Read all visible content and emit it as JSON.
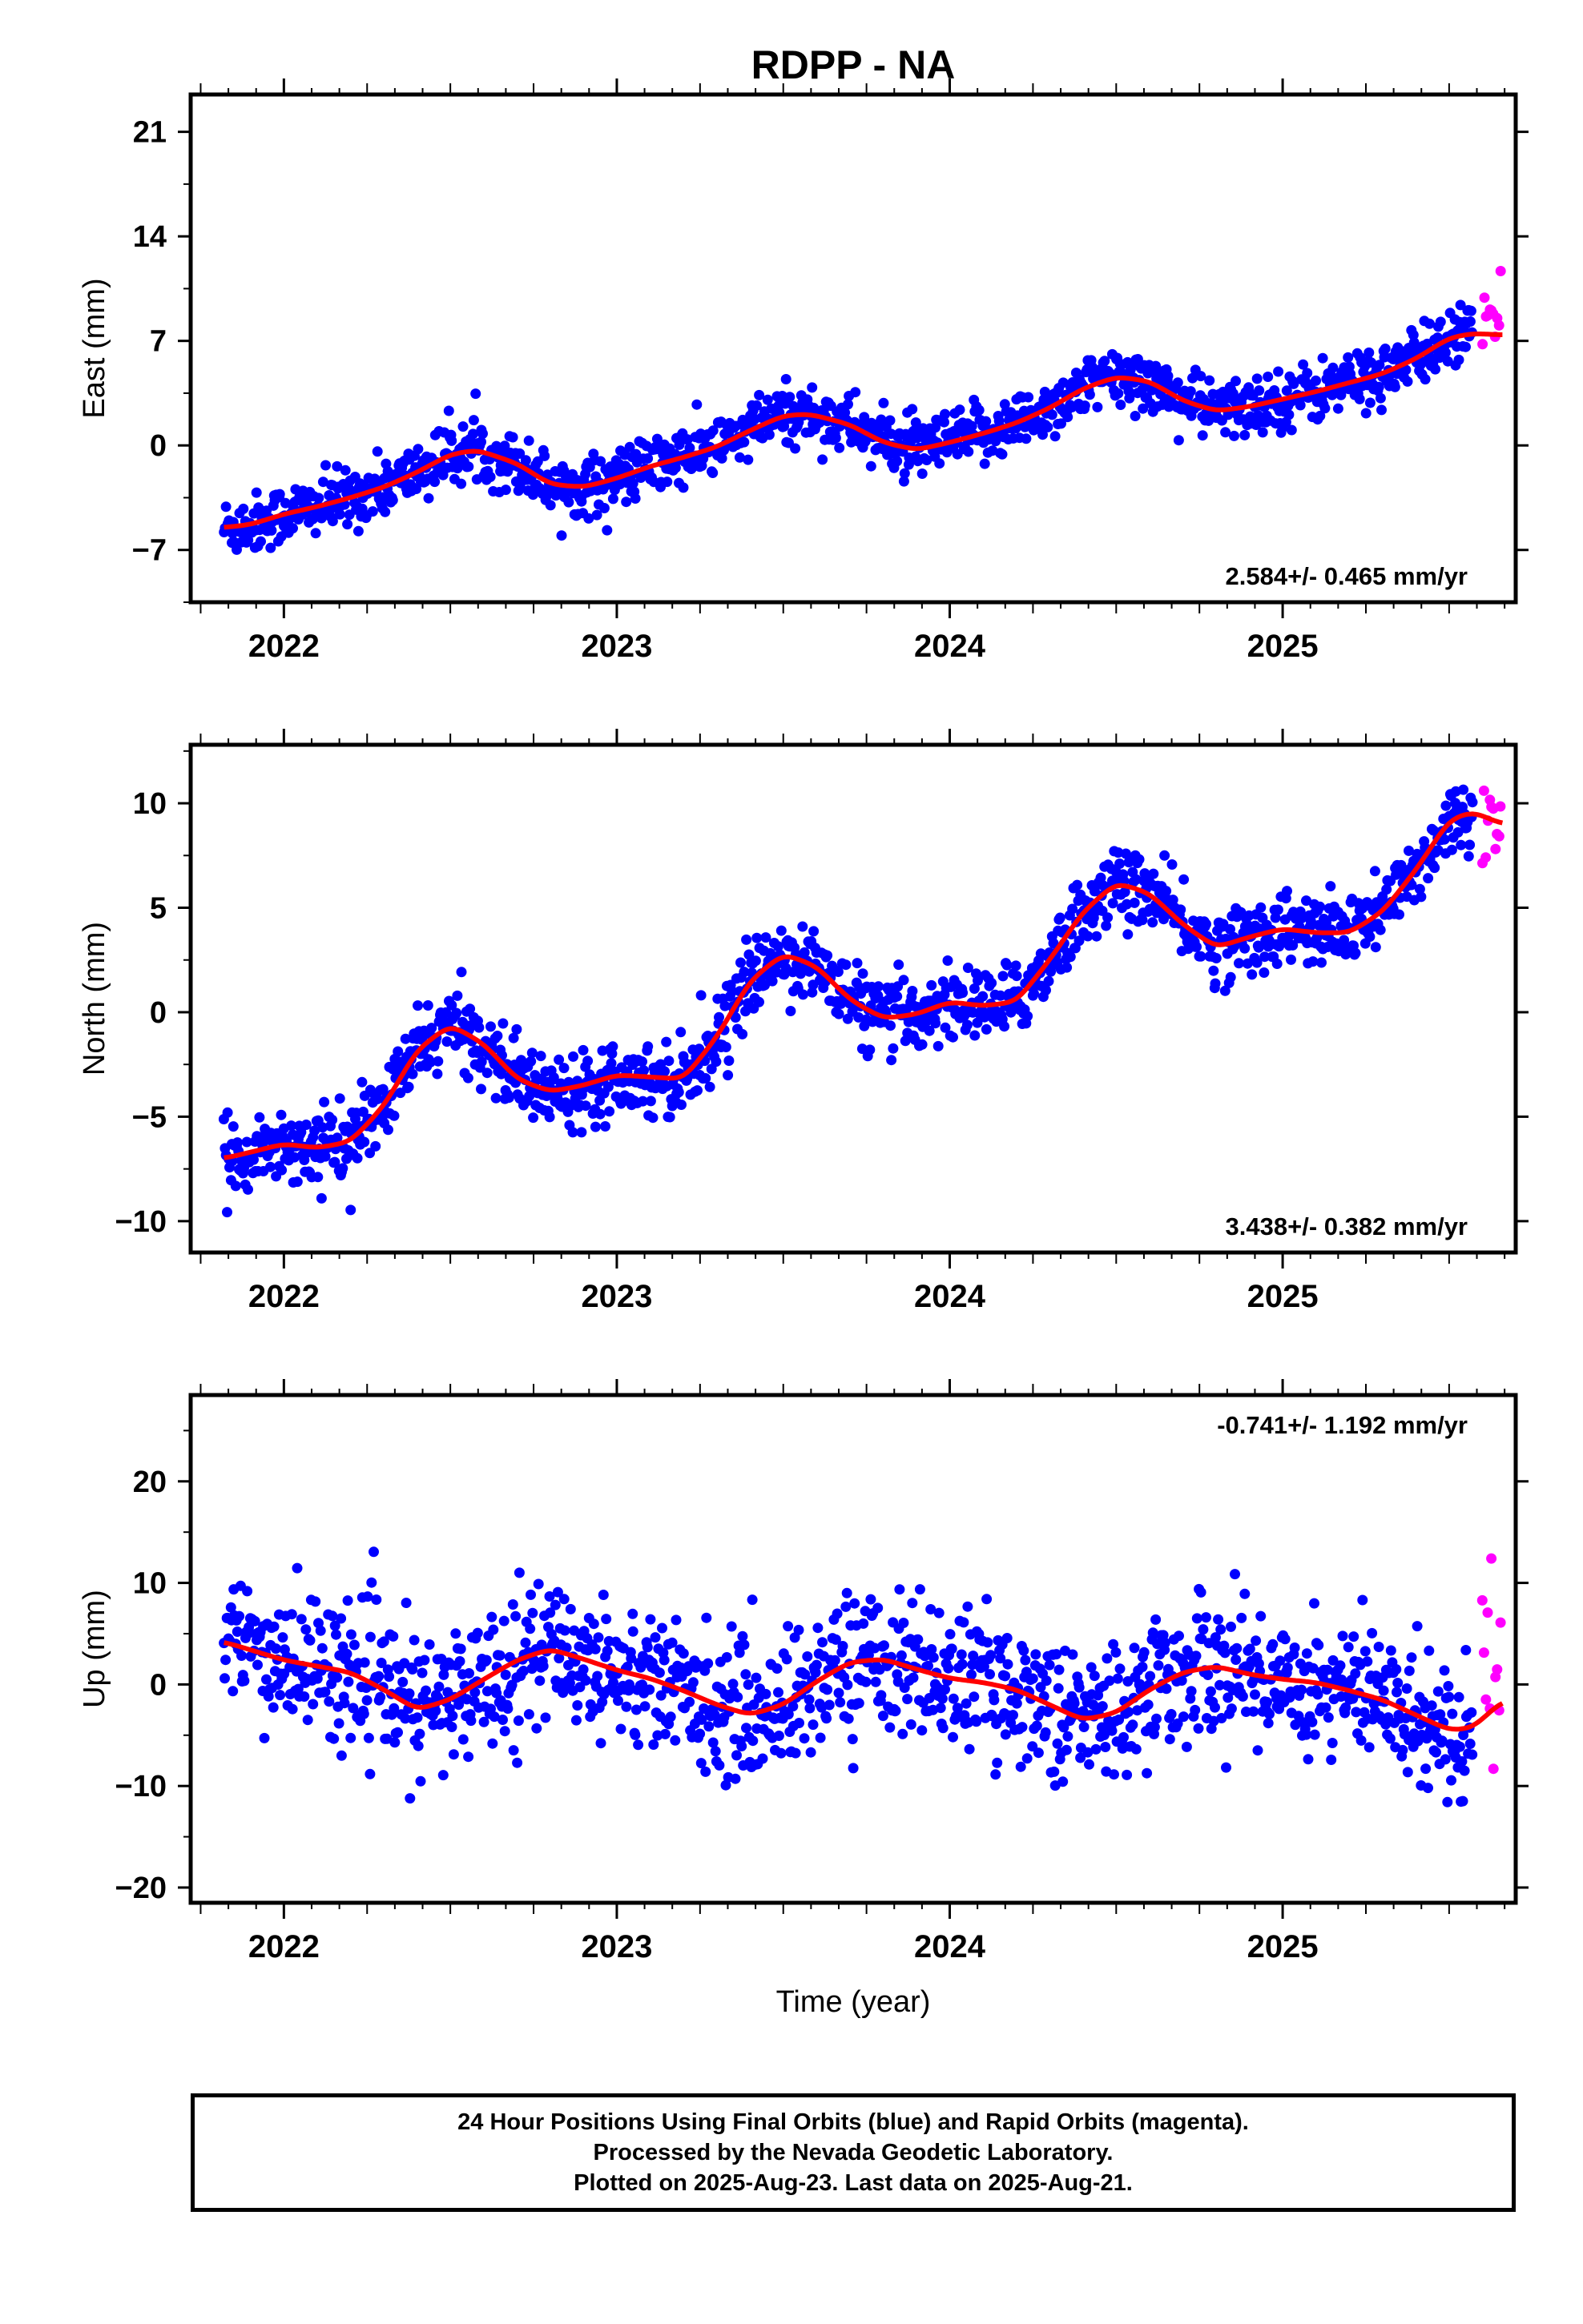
{
  "title": "RDPP - NA",
  "xlabel": "Time (year)",
  "footer": {
    "line1": "24 Hour Positions Using Final Orbits (blue) and Rapid Orbits (magenta).",
    "line2": "Processed by the Nevada Geodetic Laboratory.",
    "line3": "Plotted on 2025-Aug-23. Last data on 2025-Aug-21."
  },
  "colors": {
    "final": "#0000ff",
    "rapid": "#ff00ff",
    "fit": "#ff0000",
    "frame": "#000000"
  },
  "chart_data": [
    {
      "type": "scatter",
      "ylabel": "East (mm)",
      "xlim": [
        2021.72,
        2025.7
      ],
      "ylim": [
        -10.5,
        23.5
      ],
      "xticks": [
        2022,
        2023,
        2024,
        2025
      ],
      "yticks": [
        -7,
        0,
        7,
        14,
        21
      ],
      "rate_label": "2.584+/- 0.465 mm/yr",
      "rate_position": "bottom-right",
      "series": [
        {
          "role": "final",
          "x": [
            2021.82,
            2021.9,
            2022.0,
            2022.1,
            2022.2,
            2022.3,
            2022.4,
            2022.5,
            2022.58,
            2022.7,
            2022.8,
            2022.9,
            2023.0,
            2023.1,
            2023.2,
            2023.3,
            2023.4,
            2023.5,
            2023.58,
            2023.7,
            2023.8,
            2023.9,
            2024.0,
            2024.1,
            2024.2,
            2024.3,
            2024.4,
            2024.5,
            2024.6,
            2024.7,
            2024.8,
            2024.9,
            2025.0,
            2025.1,
            2025.2,
            2025.3,
            2025.4,
            2025.5,
            2025.57
          ],
          "y": [
            -5.5,
            -5.3,
            -4.6,
            -4.1,
            -3.5,
            -2.8,
            -1.8,
            -0.6,
            -0.3,
            -1.2,
            -2.6,
            -2.8,
            -2.2,
            -1.4,
            -0.8,
            -0.1,
            1.0,
            2.0,
            2.1,
            1.4,
            0.2,
            -0.3,
            0.2,
            0.8,
            1.5,
            2.5,
            3.8,
            4.6,
            4.3,
            3.0,
            2.3,
            2.6,
            3.1,
            3.6,
            4.2,
            4.8,
            5.8,
            7.2,
            7.5
          ],
          "sd": 1.6
        },
        {
          "role": "rapid",
          "x": [
            2025.6,
            2025.62,
            2025.64,
            2025.66
          ],
          "y": [
            8.2,
            7.6,
            9.0,
            7.8
          ],
          "sd": 2.2
        }
      ],
      "fit": {
        "x": [
          2021.82,
          2021.9,
          2022.0,
          2022.1,
          2022.2,
          2022.3,
          2022.4,
          2022.5,
          2022.58,
          2022.7,
          2022.8,
          2022.9,
          2023.0,
          2023.1,
          2023.2,
          2023.3,
          2023.4,
          2023.5,
          2023.58,
          2023.7,
          2023.8,
          2023.9,
          2024.0,
          2024.1,
          2024.2,
          2024.3,
          2024.4,
          2024.5,
          2024.6,
          2024.7,
          2024.8,
          2024.9,
          2025.0,
          2025.1,
          2025.2,
          2025.3,
          2025.4,
          2025.5,
          2025.57,
          2025.66
        ],
        "y": [
          -5.5,
          -5.3,
          -4.6,
          -4.1,
          -3.5,
          -2.8,
          -1.8,
          -0.6,
          -0.3,
          -1.2,
          -2.6,
          -2.8,
          -2.2,
          -1.4,
          -0.8,
          -0.1,
          1.0,
          2.0,
          2.1,
          1.4,
          0.2,
          -0.3,
          0.2,
          0.8,
          1.5,
          2.5,
          3.8,
          4.6,
          4.3,
          3.0,
          2.3,
          2.6,
          3.1,
          3.6,
          4.2,
          4.8,
          5.8,
          7.2,
          7.5,
          7.4
        ]
      }
    },
    {
      "type": "scatter",
      "ylabel": "North (mm)",
      "xlim": [
        2021.72,
        2025.7
      ],
      "ylim": [
        -11.5,
        12.8
      ],
      "xticks": [
        2022,
        2023,
        2024,
        2025
      ],
      "yticks": [
        -10,
        -5,
        0,
        5,
        10
      ],
      "rate_label": "3.438+/- 0.382 mm/yr",
      "rate_position": "bottom-right",
      "series": [
        {
          "role": "final",
          "x": [
            2021.82,
            2021.9,
            2022.0,
            2022.1,
            2022.2,
            2022.3,
            2022.4,
            2022.5,
            2022.6,
            2022.7,
            2022.8,
            2022.9,
            2023.0,
            2023.1,
            2023.2,
            2023.3,
            2023.4,
            2023.5,
            2023.6,
            2023.7,
            2023.8,
            2023.9,
            2024.0,
            2024.1,
            2024.2,
            2024.3,
            2024.4,
            2024.5,
            2024.6,
            2024.7,
            2024.8,
            2024.9,
            2025.0,
            2025.1,
            2025.2,
            2025.3,
            2025.4,
            2025.5,
            2025.57
          ],
          "y": [
            -7.0,
            -6.7,
            -6.3,
            -6.5,
            -6.2,
            -4.5,
            -1.8,
            -0.6,
            -1.5,
            -3.2,
            -3.8,
            -3.5,
            -3.0,
            -3.1,
            -3.2,
            -1.2,
            1.5,
            2.8,
            2.2,
            0.6,
            -0.3,
            -0.1,
            0.5,
            0.3,
            0.5,
            2.5,
            4.8,
            6.2,
            5.7,
            4.2,
            3.1,
            3.6,
            4.0,
            3.8,
            3.8,
            4.8,
            6.8,
            9.2,
            9.6
          ],
          "sd": 1.4
        },
        {
          "role": "rapid",
          "x": [
            2025.6,
            2025.62,
            2025.64,
            2025.66
          ],
          "y": [
            9.6,
            9.0,
            9.5,
            8.7
          ],
          "sd": 1.5
        }
      ],
      "fit": {
        "x": [
          2021.82,
          2021.9,
          2022.0,
          2022.1,
          2022.2,
          2022.3,
          2022.4,
          2022.5,
          2022.6,
          2022.7,
          2022.8,
          2022.9,
          2023.0,
          2023.1,
          2023.2,
          2023.3,
          2023.4,
          2023.5,
          2023.6,
          2023.7,
          2023.8,
          2023.9,
          2024.0,
          2024.1,
          2024.2,
          2024.3,
          2024.4,
          2024.5,
          2024.6,
          2024.7,
          2024.8,
          2024.9,
          2025.0,
          2025.1,
          2025.2,
          2025.3,
          2025.4,
          2025.5,
          2025.57,
          2025.66
        ],
        "y": [
          -7.0,
          -6.7,
          -6.3,
          -6.5,
          -6.2,
          -4.5,
          -1.8,
          -0.6,
          -1.5,
          -3.2,
          -3.8,
          -3.5,
          -3.0,
          -3.1,
          -3.2,
          -1.2,
          1.5,
          2.8,
          2.2,
          0.6,
          -0.3,
          -0.1,
          0.5,
          0.3,
          0.5,
          2.5,
          4.8,
          6.2,
          5.7,
          4.2,
          3.1,
          3.6,
          4.0,
          3.8,
          3.8,
          4.8,
          6.8,
          9.2,
          9.6,
          9.0
        ]
      }
    },
    {
      "type": "scatter",
      "ylabel": "Up (mm)",
      "xlim": [
        2021.72,
        2025.7
      ],
      "ylim": [
        -21.5,
        28.5
      ],
      "xticks": [
        2022,
        2023,
        2024,
        2025
      ],
      "yticks": [
        -20,
        -10,
        0,
        10,
        20
      ],
      "rate_label": "-0.741+/- 1.192 mm/yr",
      "rate_position": "top-right",
      "series": [
        {
          "role": "final",
          "x": [
            2021.82,
            2021.9,
            2022.0,
            2022.1,
            2022.2,
            2022.3,
            2022.4,
            2022.5,
            2022.6,
            2022.7,
            2022.8,
            2022.9,
            2023.0,
            2023.1,
            2023.2,
            2023.3,
            2023.4,
            2023.5,
            2023.6,
            2023.7,
            2023.8,
            2023.9,
            2024.0,
            2024.1,
            2024.2,
            2024.3,
            2024.4,
            2024.5,
            2024.6,
            2024.7,
            2024.8,
            2024.9,
            2025.0,
            2025.1,
            2025.2,
            2025.3,
            2025.4,
            2025.5,
            2025.57
          ],
          "y": [
            4.2,
            3.4,
            2.4,
            1.8,
            1.2,
            -0.5,
            -2.5,
            -1.5,
            0.5,
            2.4,
            3.5,
            2.5,
            1.4,
            0.6,
            -0.6,
            -2.0,
            -3.0,
            -2.0,
            0.3,
            2.2,
            2.5,
            1.5,
            0.6,
            0.2,
            -0.5,
            -2.0,
            -3.5,
            -2.8,
            -0.5,
            1.2,
            1.8,
            1.0,
            0.5,
            0.2,
            -0.6,
            -1.5,
            -3.0,
            -4.5,
            -4.3
          ],
          "sd": 5.5
        },
        {
          "role": "rapid",
          "x": [
            2025.6,
            2025.62,
            2025.64,
            2025.66
          ],
          "y": [
            2.0,
            4.0,
            -2.0,
            6.0
          ],
          "sd": 9.0
        }
      ],
      "fit": {
        "x": [
          2021.82,
          2021.9,
          2022.0,
          2022.1,
          2022.2,
          2022.3,
          2022.4,
          2022.5,
          2022.6,
          2022.7,
          2022.8,
          2022.9,
          2023.0,
          2023.1,
          2023.2,
          2023.3,
          2023.4,
          2023.5,
          2023.6,
          2023.7,
          2023.8,
          2023.9,
          2024.0,
          2024.1,
          2024.2,
          2024.3,
          2024.4,
          2024.5,
          2024.6,
          2024.7,
          2024.8,
          2024.9,
          2025.0,
          2025.1,
          2025.2,
          2025.3,
          2025.4,
          2025.5,
          2025.57,
          2025.66
        ],
        "y": [
          4.2,
          3.4,
          2.4,
          1.8,
          1.2,
          -0.5,
          -2.5,
          -1.5,
          0.5,
          2.4,
          3.5,
          2.5,
          1.4,
          0.6,
          -0.6,
          -2.0,
          -3.0,
          -2.0,
          0.3,
          2.2,
          2.5,
          1.5,
          0.6,
          0.2,
          -0.5,
          -2.0,
          -3.5,
          -2.8,
          -0.5,
          1.2,
          1.8,
          1.0,
          0.5,
          0.2,
          -0.6,
          -1.5,
          -3.0,
          -4.5,
          -4.3,
          -1.6
        ]
      }
    }
  ]
}
